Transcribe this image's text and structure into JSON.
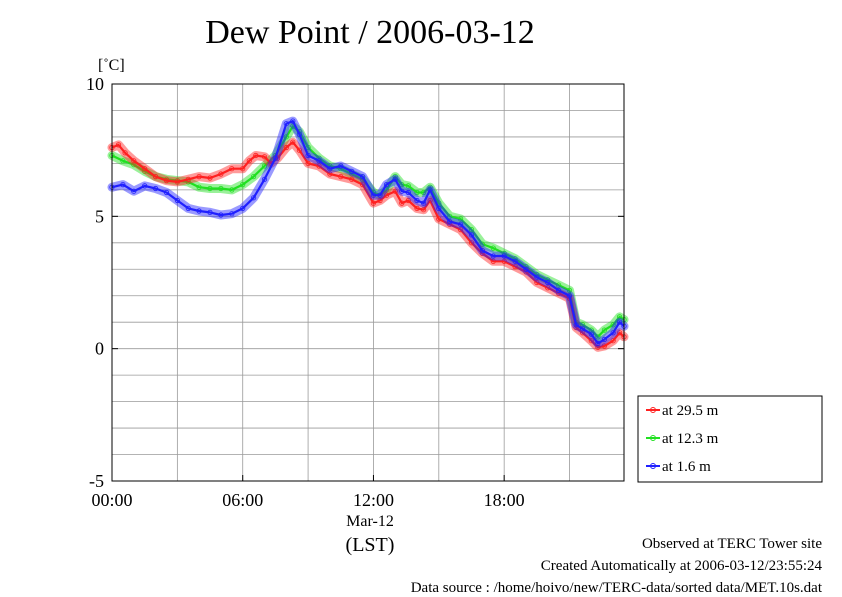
{
  "chart_data": {
    "type": "line",
    "title": "Dew Point / 2006-03-12",
    "ylabel": "[˚C]",
    "xlabel": "(LST)",
    "x_date_label": "Mar-12",
    "ylim": [
      -5,
      10
    ],
    "xlim_hours": [
      0,
      23.5
    ],
    "y_ticks": [
      "10",
      "5",
      "0",
      "-5"
    ],
    "x_ticks": [
      {
        "h": 0,
        "label": "00:00"
      },
      {
        "h": 6,
        "label": "06:00"
      },
      {
        "h": 12,
        "label": "12:00"
      },
      {
        "h": 18,
        "label": "18:00"
      }
    ],
    "grid": true,
    "legend_position": "right-bottom",
    "series": [
      {
        "name": "at 29.5 m",
        "color": "#ff2020",
        "points": [
          [
            0,
            7.6
          ],
          [
            0.3,
            7.7
          ],
          [
            0.6,
            7.4
          ],
          [
            1.0,
            7.1
          ],
          [
            1.5,
            6.8
          ],
          [
            2.0,
            6.5
          ],
          [
            2.5,
            6.35
          ],
          [
            3.0,
            6.3
          ],
          [
            3.5,
            6.4
          ],
          [
            4.0,
            6.5
          ],
          [
            4.5,
            6.45
          ],
          [
            5.0,
            6.6
          ],
          [
            5.5,
            6.8
          ],
          [
            6.0,
            6.8
          ],
          [
            6.3,
            7.1
          ],
          [
            6.6,
            7.3
          ],
          [
            7.0,
            7.25
          ],
          [
            7.3,
            7.0
          ],
          [
            7.6,
            7.2
          ],
          [
            8.0,
            7.6
          ],
          [
            8.3,
            7.8
          ],
          [
            8.6,
            7.5
          ],
          [
            9.0,
            7.0
          ],
          [
            9.5,
            6.9
          ],
          [
            10.0,
            6.6
          ],
          [
            10.5,
            6.5
          ],
          [
            11.0,
            6.4
          ],
          [
            11.5,
            6.2
          ],
          [
            12.0,
            5.5
          ],
          [
            12.3,
            5.6
          ],
          [
            12.6,
            5.8
          ],
          [
            13.0,
            5.95
          ],
          [
            13.3,
            5.5
          ],
          [
            13.6,
            5.6
          ],
          [
            14.0,
            5.3
          ],
          [
            14.3,
            5.25
          ],
          [
            14.6,
            5.6
          ],
          [
            15.0,
            4.9
          ],
          [
            15.5,
            4.7
          ],
          [
            16.0,
            4.5
          ],
          [
            16.5,
            4.0
          ],
          [
            17.0,
            3.6
          ],
          [
            17.5,
            3.3
          ],
          [
            18.0,
            3.3
          ],
          [
            18.5,
            3.1
          ],
          [
            19.0,
            2.9
          ],
          [
            19.5,
            2.5
          ],
          [
            20.0,
            2.3
          ],
          [
            20.5,
            2.1
          ],
          [
            21.0,
            1.9
          ],
          [
            21.3,
            0.8
          ],
          [
            21.6,
            0.6
          ],
          [
            22.0,
            0.3
          ],
          [
            22.3,
            0.05
          ],
          [
            22.6,
            0.1
          ],
          [
            23.0,
            0.3
          ],
          [
            23.3,
            0.6
          ],
          [
            23.5,
            0.45
          ]
        ]
      },
      {
        "name": "at 12.3 m",
        "color": "#20e020",
        "points": [
          [
            0,
            7.3
          ],
          [
            0.5,
            7.1
          ],
          [
            1.0,
            6.95
          ],
          [
            1.5,
            6.7
          ],
          [
            2.0,
            6.5
          ],
          [
            2.5,
            6.4
          ],
          [
            3.0,
            6.35
          ],
          [
            3.5,
            6.3
          ],
          [
            4.0,
            6.1
          ],
          [
            4.5,
            6.05
          ],
          [
            5.0,
            6.05
          ],
          [
            5.5,
            6.0
          ],
          [
            6.0,
            6.2
          ],
          [
            6.5,
            6.5
          ],
          [
            7.0,
            6.9
          ],
          [
            7.5,
            7.3
          ],
          [
            8.0,
            8.0
          ],
          [
            8.3,
            8.4
          ],
          [
            8.6,
            8.2
          ],
          [
            9.0,
            7.6
          ],
          [
            9.5,
            7.2
          ],
          [
            10.0,
            6.9
          ],
          [
            10.5,
            6.8
          ],
          [
            11.0,
            6.6
          ],
          [
            11.5,
            6.4
          ],
          [
            12.0,
            5.9
          ],
          [
            12.3,
            5.8
          ],
          [
            12.6,
            6.0
          ],
          [
            13.0,
            6.5
          ],
          [
            13.3,
            6.2
          ],
          [
            13.6,
            6.15
          ],
          [
            14.0,
            5.9
          ],
          [
            14.3,
            5.9
          ],
          [
            14.6,
            6.1
          ],
          [
            15.0,
            5.5
          ],
          [
            15.5,
            5.0
          ],
          [
            16.0,
            4.9
          ],
          [
            16.5,
            4.5
          ],
          [
            17.0,
            3.95
          ],
          [
            17.5,
            3.8
          ],
          [
            18.0,
            3.6
          ],
          [
            18.5,
            3.4
          ],
          [
            19.0,
            3.1
          ],
          [
            19.5,
            2.8
          ],
          [
            20.0,
            2.6
          ],
          [
            20.5,
            2.4
          ],
          [
            21.0,
            2.2
          ],
          [
            21.3,
            1.0
          ],
          [
            21.6,
            0.9
          ],
          [
            22.0,
            0.7
          ],
          [
            22.3,
            0.45
          ],
          [
            22.6,
            0.7
          ],
          [
            23.0,
            0.9
          ],
          [
            23.3,
            1.2
          ],
          [
            23.5,
            1.1
          ]
        ]
      },
      {
        "name": "at 1.6 m",
        "color": "#2020ff",
        "points": [
          [
            0,
            6.1
          ],
          [
            0.5,
            6.2
          ],
          [
            1.0,
            5.95
          ],
          [
            1.5,
            6.15
          ],
          [
            2.0,
            6.05
          ],
          [
            2.5,
            5.9
          ],
          [
            3.0,
            5.6
          ],
          [
            3.5,
            5.3
          ],
          [
            4.0,
            5.2
          ],
          [
            4.5,
            5.15
          ],
          [
            5.0,
            5.05
          ],
          [
            5.5,
            5.1
          ],
          [
            6.0,
            5.3
          ],
          [
            6.5,
            5.7
          ],
          [
            7.0,
            6.4
          ],
          [
            7.5,
            7.2
          ],
          [
            8.0,
            8.5
          ],
          [
            8.3,
            8.6
          ],
          [
            8.6,
            8.1
          ],
          [
            9.0,
            7.3
          ],
          [
            9.5,
            7.1
          ],
          [
            10.0,
            6.8
          ],
          [
            10.5,
            6.9
          ],
          [
            11.0,
            6.7
          ],
          [
            11.5,
            6.5
          ],
          [
            12.0,
            5.8
          ],
          [
            12.3,
            5.8
          ],
          [
            12.6,
            6.2
          ],
          [
            13.0,
            6.4
          ],
          [
            13.3,
            5.95
          ],
          [
            13.6,
            5.9
          ],
          [
            14.0,
            5.6
          ],
          [
            14.3,
            5.5
          ],
          [
            14.6,
            6.0
          ],
          [
            15.0,
            5.3
          ],
          [
            15.5,
            4.8
          ],
          [
            16.0,
            4.7
          ],
          [
            16.5,
            4.3
          ],
          [
            17.0,
            3.7
          ],
          [
            17.5,
            3.5
          ],
          [
            18.0,
            3.5
          ],
          [
            18.5,
            3.3
          ],
          [
            19.0,
            3.0
          ],
          [
            19.5,
            2.7
          ],
          [
            20.0,
            2.5
          ],
          [
            20.5,
            2.2
          ],
          [
            21.0,
            2.0
          ],
          [
            21.3,
            0.9
          ],
          [
            21.6,
            0.75
          ],
          [
            22.0,
            0.55
          ],
          [
            22.3,
            0.2
          ],
          [
            22.6,
            0.35
          ],
          [
            23.0,
            0.6
          ],
          [
            23.3,
            1.0
          ],
          [
            23.5,
            0.85
          ]
        ]
      }
    ]
  },
  "footer": {
    "line1": "Observed at TERC Tower site",
    "line2": "Created Automatically at 2006-03-12/23:55:24",
    "line3": "Data source : /home/hoivo/new/TERC-data/sorted  data/MET.10s.dat"
  }
}
